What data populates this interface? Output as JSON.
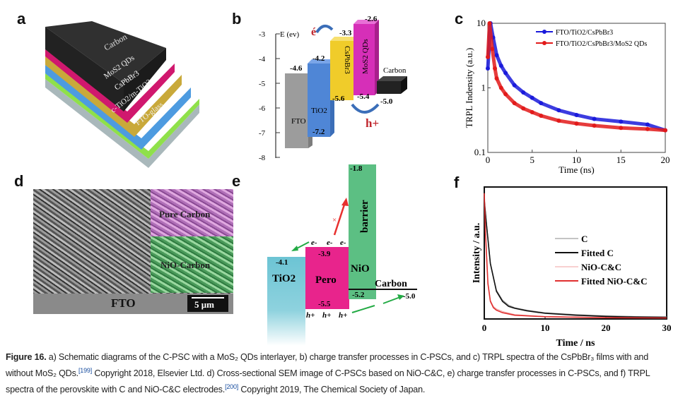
{
  "panels": {
    "a": {
      "label": "a",
      "layers": [
        "Carbon",
        "MoS2 QDs",
        "CsPbBr3",
        "c-TiO2/m-TiO2",
        "FTO-glass"
      ],
      "colors": [
        "#2b2b2b",
        "#d0186e",
        "#c9a93a",
        "#4d9be0",
        "#8fe04a",
        "#a9b8bb"
      ]
    },
    "b": {
      "label": "b",
      "axis_title": "E (ev)",
      "ticks": [
        "-3",
        "-4",
        "-5",
        "-6",
        "-7",
        "-8"
      ],
      "materials": [
        {
          "name": "FTO",
          "top": "-4.6",
          "color": "#9c9c9c"
        },
        {
          "name": "TiO2",
          "top": "-4.2",
          "bottom": "-7.2",
          "color": "#4f86d6"
        },
        {
          "name": "CsPbBr3",
          "top": "-3.3",
          "bottom": "-5.6",
          "color": "#f0cc2a"
        },
        {
          "name": "MoS2 QDs",
          "top": "-2.6",
          "bottom": "-5.4",
          "color": "#d62fb8"
        },
        {
          "name": "Carbon",
          "bottom": "-5.0",
          "color": "#222222"
        }
      ],
      "electron": "é",
      "hole": "h+"
    },
    "d": {
      "label": "d",
      "regions": [
        "Pure Carbon",
        "NiO-Carbon",
        "FTO"
      ],
      "scale_bar": "5 μm"
    },
    "e": {
      "label": "e",
      "tio2": {
        "name": "TiO2",
        "value": "-4.1",
        "color": "#6cc4d4"
      },
      "pero": {
        "name": "Pero",
        "top": "-3.9",
        "bottom": "-5.5",
        "color": "#e8248c"
      },
      "nio": {
        "name": "NiO",
        "top": "-1.8",
        "bottom": "-5.2",
        "barrier": "barrier",
        "color": "#5cbf83"
      },
      "carbon": {
        "name": "Carbon",
        "value": "-5.0"
      },
      "electron": "e-",
      "hole": "h+",
      "blocked": "×"
    }
  },
  "chart_data": [
    {
      "panel": "c",
      "label": "c",
      "type": "scatter",
      "yscale": "log",
      "xlabel": "Time (ns)",
      "ylabel": "TRPL Indensity (a.u.)",
      "xlim": [
        0,
        20
      ],
      "ylim": [
        0.1,
        10
      ],
      "xticks": [
        "0",
        "5",
        "10",
        "15",
        "20"
      ],
      "yticks": [
        "0.1",
        "1",
        "10"
      ],
      "legend": "top-right",
      "series": [
        {
          "name": "FTO/TiO2/CsPbBr3",
          "color": "#1a1adb",
          "x": [
            0,
            0.3,
            0.6,
            1,
            1.5,
            2,
            3,
            4,
            5,
            6,
            8,
            10,
            12,
            15,
            18,
            20
          ],
          "y": [
            2,
            10,
            6,
            3.2,
            2.2,
            1.7,
            1.1,
            0.85,
            0.7,
            0.58,
            0.45,
            0.38,
            0.33,
            0.3,
            0.27,
            0.22
          ]
        },
        {
          "name": "FTO/TiO2/CsPbBr3/MoS2 QDs",
          "color": "#e21a1a",
          "x": [
            0,
            0.2,
            0.5,
            0.8,
            1,
            1.5,
            2,
            3,
            4,
            5,
            6,
            8,
            10,
            12,
            15,
            18,
            20
          ],
          "y": [
            3,
            10,
            4,
            2,
            1.4,
            1,
            0.8,
            0.58,
            0.48,
            0.42,
            0.37,
            0.31,
            0.28,
            0.26,
            0.24,
            0.23,
            0.22
          ]
        }
      ]
    },
    {
      "panel": "f",
      "label": "f",
      "type": "line",
      "xlabel": "Time / ns",
      "ylabel": "Intensity / a.u.",
      "xlim": [
        0,
        30
      ],
      "ylim": [
        0,
        1.05
      ],
      "xticks": [
        "0",
        "10",
        "20",
        "30"
      ],
      "legend": "center-right",
      "series": [
        {
          "name": "C",
          "color": "#888888",
          "x": [
            0,
            0.3,
            1,
            2,
            3,
            4,
            5,
            7,
            10,
            15,
            20,
            25,
            30
          ],
          "y": [
            0.95,
            0.8,
            0.45,
            0.23,
            0.15,
            0.11,
            0.09,
            0.07,
            0.05,
            0.035,
            0.025,
            0.02,
            0.018
          ]
        },
        {
          "name": "Fitted C",
          "color": "#111111",
          "x": [
            0,
            0.3,
            1,
            2,
            3,
            4,
            5,
            7,
            10,
            15,
            20,
            25,
            30
          ],
          "y": [
            0.95,
            0.78,
            0.44,
            0.22,
            0.14,
            0.1,
            0.085,
            0.065,
            0.045,
            0.03,
            0.02,
            0.015,
            0.012
          ]
        },
        {
          "name": "NiO-C&C",
          "color": "#f0a0a0",
          "x": [
            0,
            0.2,
            0.6,
            1,
            1.5,
            2,
            3,
            5,
            10,
            20,
            30
          ],
          "y": [
            1.0,
            0.7,
            0.3,
            0.15,
            0.1,
            0.08,
            0.06,
            0.035,
            0.02,
            0.012,
            0.01
          ]
        },
        {
          "name": "Fitted NiO-C&C",
          "color": "#e03030",
          "x": [
            0,
            0.2,
            0.6,
            1,
            1.5,
            2,
            3,
            5,
            10,
            20,
            30
          ],
          "y": [
            1.0,
            0.68,
            0.28,
            0.14,
            0.09,
            0.07,
            0.05,
            0.03,
            0.018,
            0.01,
            0.008
          ]
        }
      ]
    }
  ],
  "caption": {
    "fig": "Figure 16.",
    "part1": " a) Schematic diagrams of the C-PSC with a MoS₂ QDs interlayer, b) charge transfer processes in C-PSCs, and c) TRPL spectra of the CsPbBr₃ films with and without MoS₂ QDs.",
    "ref1": "[199]",
    "part2": " Copyright 2018, Elsevier Ltd. d) Cross-sectional SEM image of C-PSCs based on NiO-C&C, e) charge transfer processes in C-PSCs, and f) TRPL spectra of the perovskite with C and NiO-C&C electrodes.",
    "ref2": "[200]",
    "part3": " Copyright 2019, The Chemical Society of Japan."
  }
}
